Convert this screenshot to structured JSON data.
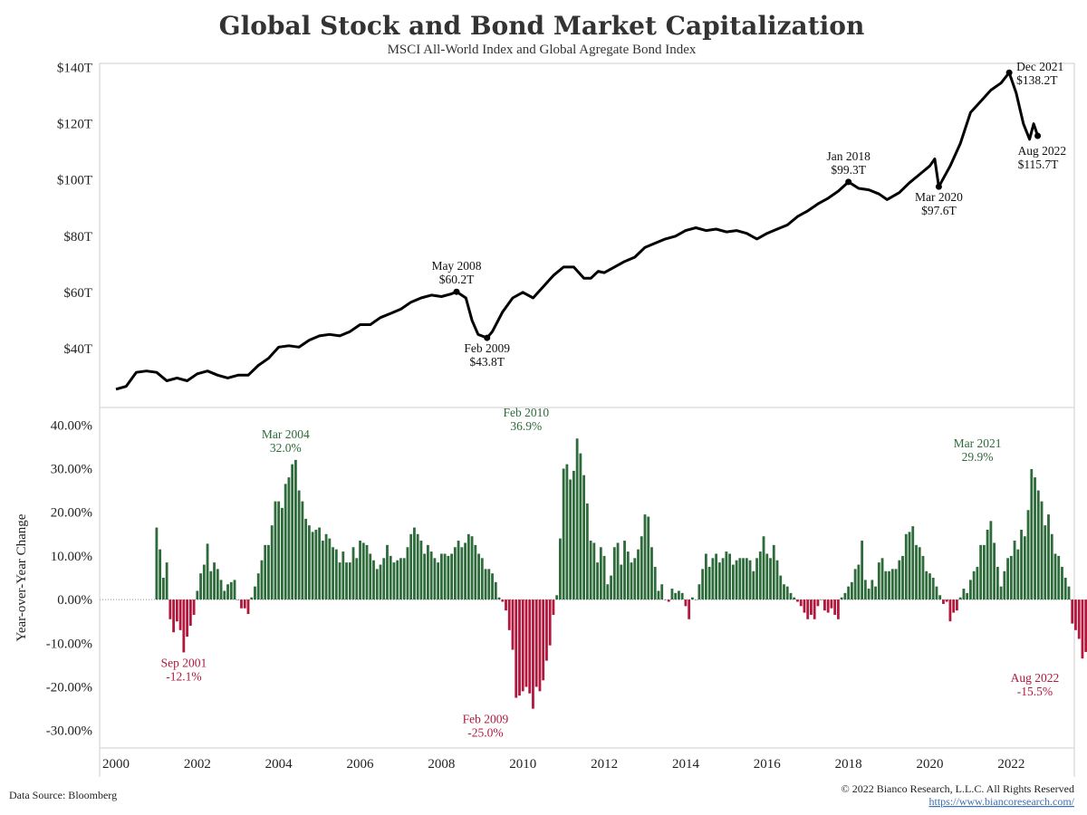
{
  "header": {
    "title": "Global Stock and Bond Market Capitalization",
    "subtitle": "MSCI All-World Index and Global Agregate Bond Index"
  },
  "footer": {
    "source": "Data Source: Bloomberg",
    "copyright": "© 2022 Bianco Research, L.L.C. All Rights Reserved",
    "url": "https://www.biancoresearch.com/"
  },
  "colors": {
    "line": "#000000",
    "positive_bar": "#2e6b3b",
    "negative_bar": "#b2173d",
    "panel_border": "#cccccc"
  },
  "chart_data": [
    {
      "type": "line",
      "xlim": [
        1999.6,
        2023.55
      ],
      "ylim": [
        19,
        141.5
      ],
      "yticks": [
        40,
        60,
        80,
        100,
        120,
        140
      ],
      "ytick_labels": [
        "$40T",
        "$60T",
        "$80T",
        "$100T",
        "$120T",
        "$140T"
      ],
      "series": [
        {
          "x": [
            2000.0,
            2000.25,
            2000.5,
            2000.75,
            2001.0,
            2001.25,
            2001.5,
            2001.75,
            2002.0,
            2002.25,
            2002.5,
            2002.75,
            2003.0,
            2003.25,
            2003.5,
            2003.75,
            2004.0,
            2004.25,
            2004.5,
            2004.75,
            2005.0,
            2005.25,
            2005.5,
            2005.75,
            2006.0,
            2006.25,
            2006.5,
            2006.75,
            2007.0,
            2007.25,
            2007.5,
            2007.75,
            2008.0,
            2008.25,
            2008.37,
            2008.6,
            2008.75,
            2008.9,
            2009.12,
            2009.25,
            2009.5,
            2009.75,
            2010.0,
            2010.25,
            2010.5,
            2010.75,
            2011.0,
            2011.25,
            2011.5,
            2011.67,
            2011.85,
            2012.0,
            2012.25,
            2012.5,
            2012.75,
            2013.0,
            2013.25,
            2013.5,
            2013.75,
            2014.0,
            2014.25,
            2014.5,
            2014.75,
            2015.0,
            2015.25,
            2015.5,
            2015.75,
            2016.0,
            2016.25,
            2016.5,
            2016.75,
            2017.0,
            2017.25,
            2017.5,
            2017.75,
            2018.0,
            2018.25,
            2018.5,
            2018.75,
            2018.95,
            2019.25,
            2019.5,
            2019.75,
            2020.0,
            2020.12,
            2020.22,
            2020.5,
            2020.75,
            2021.0,
            2021.25,
            2021.5,
            2021.75,
            2021.95,
            2022.12,
            2022.3,
            2022.45,
            2022.55,
            2022.65
          ],
          "y": [
            25.5,
            26.5,
            31.5,
            32.0,
            31.5,
            28.5,
            29.5,
            28.5,
            31.0,
            32.0,
            30.5,
            29.5,
            30.5,
            30.5,
            34.0,
            36.5,
            40.5,
            41.0,
            40.5,
            43.0,
            44.5,
            45.0,
            44.5,
            46.0,
            48.5,
            48.5,
            51.0,
            52.5,
            54.0,
            56.5,
            58.0,
            59.0,
            58.5,
            59.5,
            60.2,
            58.0,
            50.0,
            45.0,
            43.8,
            46.0,
            53.0,
            58.0,
            60.0,
            58.0,
            62.0,
            66.0,
            69.0,
            69.0,
            65.0,
            65.0,
            67.5,
            67.0,
            69.0,
            71.0,
            72.5,
            76.0,
            77.5,
            79.0,
            80.0,
            82.0,
            83.0,
            82.0,
            82.5,
            81.5,
            82.0,
            81.0,
            79.0,
            81.0,
            82.5,
            84.0,
            87.0,
            89.0,
            91.5,
            93.5,
            96.0,
            99.3,
            97.0,
            96.5,
            95.0,
            93.0,
            95.5,
            99.0,
            102.0,
            105.0,
            107.5,
            97.6,
            105.0,
            113.0,
            124.0,
            128.0,
            132.0,
            134.5,
            138.2,
            131.0,
            120.0,
            114.5,
            120.0,
            115.7
          ]
        }
      ],
      "annotations": [
        {
          "date": "May 2008",
          "value": "$60.2T",
          "x": 2008.37,
          "y": 60.2,
          "pos": "above"
        },
        {
          "date": "Feb 2009",
          "value": "$43.8T",
          "x": 2009.12,
          "y": 43.8,
          "pos": "below"
        },
        {
          "date": "Jan 2018",
          "value": "$99.3T",
          "x": 2018.0,
          "y": 99.3,
          "pos": "above"
        },
        {
          "date": "Mar 2020",
          "value": "$97.6T",
          "x": 2020.22,
          "y": 97.6,
          "pos": "below"
        },
        {
          "date": "Dec 2021",
          "value": "$138.2T",
          "x": 2021.95,
          "y": 138.2,
          "pos": "right"
        },
        {
          "date": "Aug 2022",
          "value": "$115.7T",
          "x": 2022.65,
          "y": 115.7,
          "pos": "below-right"
        }
      ]
    },
    {
      "type": "bar",
      "ylabel": "Year-over-Year Change",
      "xlim": [
        1999.6,
        2023.55
      ],
      "ylim": [
        -34,
        44
      ],
      "yticks": [
        -30,
        -20,
        -10,
        0,
        10,
        20,
        30,
        40
      ],
      "ytick_labels": [
        "-30.00%",
        "-20.00%",
        "-10.00%",
        "0.00%",
        "10.00%",
        "20.00%",
        "30.00%",
        "40.00%"
      ],
      "x_start": 2001.0,
      "x_step": 0.08333,
      "values": [
        16.5,
        11.5,
        5.0,
        8.5,
        -4.5,
        -7.5,
        -5.0,
        -7.0,
        -12.1,
        -8.5,
        -6.0,
        -3.5,
        2.0,
        6.0,
        8.0,
        12.8,
        6.5,
        8.5,
        7.0,
        4.5,
        2.0,
        3.5,
        4.0,
        4.5,
        0.0,
        -2.0,
        -2.0,
        -3.3,
        0.5,
        3.0,
        6.0,
        9.0,
        12.5,
        12.5,
        17.0,
        22.5,
        22.5,
        21.0,
        26.5,
        28.0,
        31.0,
        32.0,
        25.0,
        22.5,
        18.5,
        17.0,
        15.5,
        16.0,
        16.5,
        13.5,
        15.0,
        14.0,
        12.0,
        11.5,
        8.5,
        11.0,
        8.5,
        8.5,
        12.0,
        9.5,
        13.5,
        13.0,
        12.5,
        10.5,
        9.0,
        7.0,
        8.0,
        9.5,
        12.5,
        10.0,
        8.5,
        9.0,
        9.5,
        9.5,
        12.0,
        15.0,
        16.5,
        15.0,
        13.5,
        10.5,
        12.5,
        11.0,
        9.5,
        8.5,
        10.5,
        10.5,
        10.0,
        10.5,
        12.0,
        13.5,
        12.0,
        13.0,
        15.0,
        14.5,
        12.5,
        10.5,
        9.5,
        7.0,
        7.0,
        6.0,
        4.0,
        0.5,
        -0.5,
        -2.5,
        -7.0,
        -11.5,
        -22.5,
        -22.0,
        -21.0,
        -20.0,
        -21.5,
        -25.0,
        -20.0,
        -21.0,
        -18.5,
        -14.0,
        -10.5,
        -3.5,
        1.0,
        14.0,
        30.0,
        31.0,
        27.5,
        29.5,
        36.9,
        33.5,
        28.5,
        22.0,
        13.5,
        13.0,
        8.5,
        12.0,
        10.0,
        3.5,
        5.5,
        12.0,
        13.0,
        8.0,
        13.5,
        11.0,
        8.5,
        9.5,
        11.5,
        14.5,
        19.5,
        19.0,
        12.0,
        7.5,
        2.0,
        3.5,
        0.0,
        -0.5,
        2.5,
        1.5,
        2.0,
        1.5,
        -1.5,
        -4.5,
        0.5,
        0.0,
        3.5,
        7.0,
        10.5,
        7.5,
        9.5,
        10.5,
        8.5,
        9.5,
        11.0,
        10.5,
        8.0,
        9.0,
        9.5,
        9.5,
        9.5,
        9.0,
        6.5,
        9.5,
        11.0,
        14.5,
        10.5,
        9.5,
        12.5,
        9.0,
        5.5,
        3.5,
        3.0,
        1.5,
        0.5,
        -0.5,
        -1.5,
        -3.0,
        -4.5,
        -3.5,
        -4.5,
        -1.5,
        0.0,
        -2.5,
        -3.0,
        -2.0,
        -3.5,
        -4.5,
        0.5,
        1.5,
        3.0,
        4.0,
        7.0,
        8.0,
        13.5,
        4.5,
        2.5,
        4.5,
        3.0,
        8.5,
        9.5,
        6.5,
        6.5,
        7.0,
        7.0,
        9.0,
        10.0,
        15.0,
        15.5,
        16.8,
        12.5,
        12.0,
        10.0,
        6.5,
        6.0,
        5.0,
        3.0,
        1.0,
        -1.0,
        -0.5,
        -5.0,
        -3.0,
        -2.5,
        0.5,
        2.5,
        1.5,
        4.5,
        6.5,
        7.5,
        12.5,
        12.5,
        16.0,
        18.0,
        13.0,
        7.5,
        3.0,
        6.5,
        9.5,
        10.0,
        13.5,
        11.5,
        16.0,
        14.5,
        20.5,
        29.9,
        28.0,
        25.0,
        22.5,
        17.0,
        19.5,
        15.0,
        10.5,
        10.0,
        7.5,
        5.0,
        3.0,
        -5.5,
        -7.0,
        -9.0,
        -13.5,
        -12.0,
        -15.5
      ],
      "annotations": [
        {
          "date": "Sep 2001",
          "value": "-12.1%",
          "x": 2001.67,
          "y": -12.1,
          "kind": "neg"
        },
        {
          "date": "Mar 2004",
          "value": "32.0%",
          "x": 2004.17,
          "y": 32.0,
          "kind": "pos"
        },
        {
          "date": "Feb 2009",
          "value": "-25.0%",
          "x": 2009.08,
          "y": -25.0,
          "kind": "neg"
        },
        {
          "date": "Feb 2010",
          "value": "36.9%",
          "x": 2010.08,
          "y": 36.9,
          "kind": "pos"
        },
        {
          "date": "Mar 2021",
          "value": "29.9%",
          "x": 2021.17,
          "y": 29.9,
          "kind": "pos"
        },
        {
          "date": "Aug 2022",
          "value": "-15.5%",
          "x": 2022.58,
          "y": -15.5,
          "kind": "neg"
        }
      ],
      "xticks": [
        2000,
        2002,
        2004,
        2006,
        2008,
        2010,
        2012,
        2014,
        2016,
        2018,
        2020,
        2022
      ],
      "xtick_labels": [
        "2000",
        "2002",
        "2004",
        "2006",
        "2008",
        "2010",
        "2012",
        "2014",
        "2016",
        "2018",
        "2020",
        "2022"
      ]
    }
  ]
}
